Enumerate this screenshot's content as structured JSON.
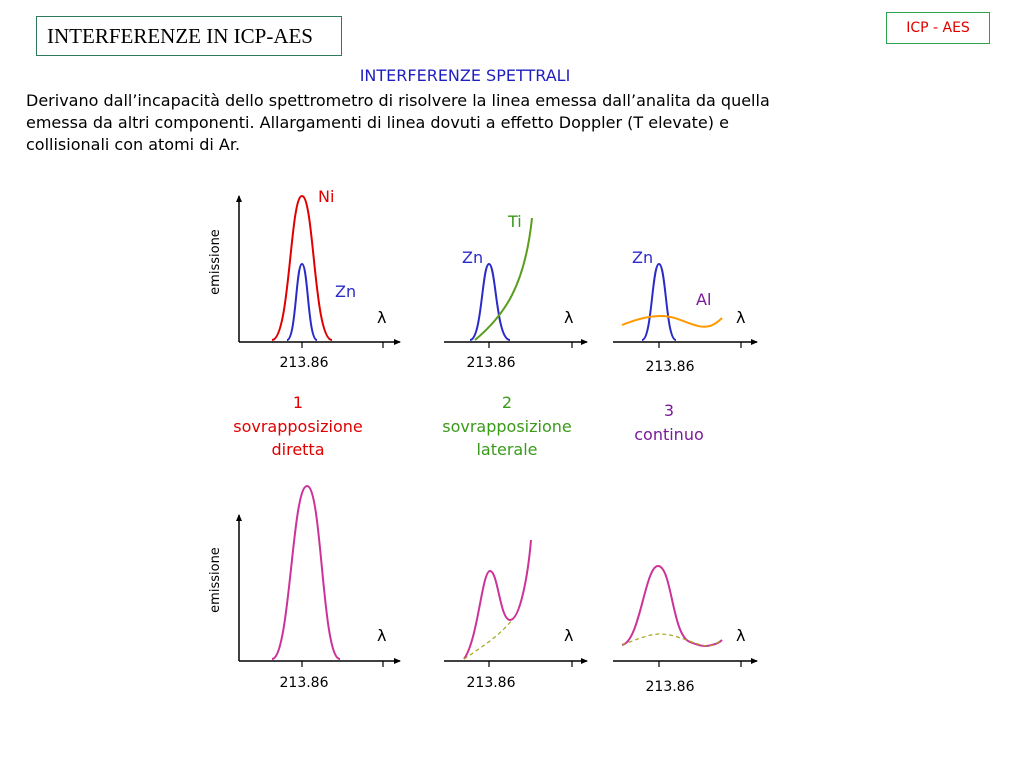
{
  "header": {
    "title": "INTERFERENZE IN ICP-AES",
    "tag": "ICP - AES"
  },
  "section": {
    "subtitle": "INTERFERENZE SPETTRALI",
    "description_lines": [
      "Derivano dall’incapacità dello spettrometro di risolvere la linea emessa dall’analita da quella",
      "emessa da altri componenti. Allargamenti di linea dovuti a effetto Doppler (T elevate) e",
      "collisionali con atomi di Ar."
    ]
  },
  "axes": {
    "y_label": "emissione",
    "x_symbol": "λ",
    "tick_label": "213.86"
  },
  "panels": [
    {
      "number": "1",
      "caption_lines": [
        "sovrapposizione",
        "diretta"
      ],
      "caption_color": "#e00000",
      "labels": [
        "Ni",
        "Zn"
      ]
    },
    {
      "number": "2",
      "caption_lines": [
        "sovrapposizione",
        "laterale"
      ],
      "caption_color": "#3a9a1a",
      "labels": [
        "Ti",
        "Zn"
      ]
    },
    {
      "number": "3",
      "caption_lines": [
        "continuo"
      ],
      "caption_color": "#7a1a9a",
      "labels": [
        "Zn",
        "Al"
      ]
    }
  ],
  "colors": {
    "ni": "#e00000",
    "zn": "#2b2bc8",
    "ti": "#5a9e1e",
    "al": "#ff9900",
    "al_label": "#7a1a9a",
    "sum": "#cc3399",
    "dashed": "#a6a620"
  }
}
